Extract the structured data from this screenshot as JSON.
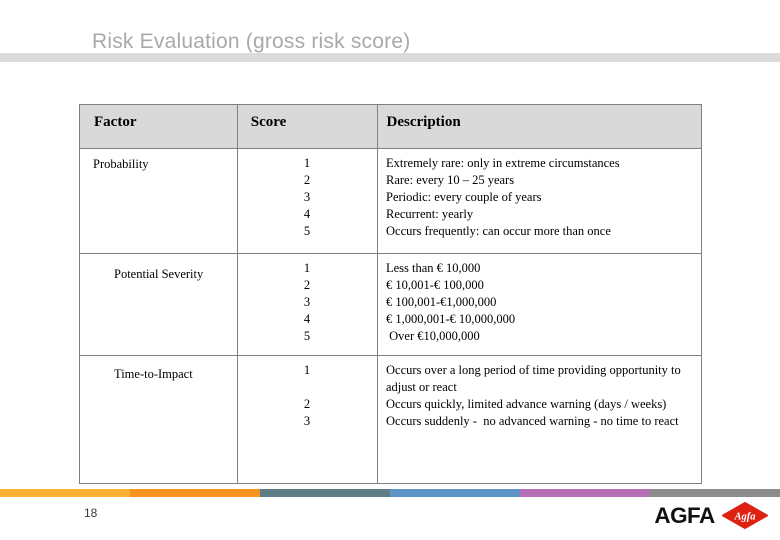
{
  "slide": {
    "title": "Risk Evaluation (gross risk score)"
  },
  "table": {
    "headers": [
      "Factor",
      "Score",
      "Description"
    ],
    "rows": [
      {
        "factor": "Probability",
        "entries": [
          {
            "score": "1",
            "description": "Extremely rare: only in extreme circumstances"
          },
          {
            "score": "2",
            "description": "Rare: every 10 – 25 years"
          },
          {
            "score": "3",
            "description": "Periodic: every couple of years"
          },
          {
            "score": "4",
            "description": "Recurrent: yearly"
          },
          {
            "score": "5",
            "description": "Occurs frequently: can occur more than once"
          }
        ]
      },
      {
        "factor": "Potential Severity",
        "entries": [
          {
            "score": "1",
            "description": "Less than € 10,000"
          },
          {
            "score": "2",
            "description": "€ 10,001-€ 100,000"
          },
          {
            "score": "3",
            "description": "€ 100,001-€1,000,000"
          },
          {
            "score": "4",
            "description": "€ 1,000,001-€ 10,000,000"
          },
          {
            "score": "5",
            "description": " Over €10,000,000"
          }
        ]
      },
      {
        "factor": "Time-to-Impact",
        "entries": [
          {
            "score": "1",
            "description": "Occurs over a long period of time providing opportunity to adjust or react"
          },
          {
            "score": "2",
            "description": "Occurs quickly, limited advance warning (days / weeks)"
          },
          {
            "score": "3",
            "description": "Occurs suddenly -  no advanced warning - no time to react"
          }
        ]
      }
    ]
  },
  "footer": {
    "page_number": "18",
    "stripe_colors": [
      "#fbb034",
      "#f7941e",
      "#5f7d85",
      "#5e94c7",
      "#b56fb5",
      "#8c8c8c"
    ],
    "logo_text": "AGFA",
    "logo_diamond_text": "Agfa",
    "logo_red": "#dd2211"
  }
}
